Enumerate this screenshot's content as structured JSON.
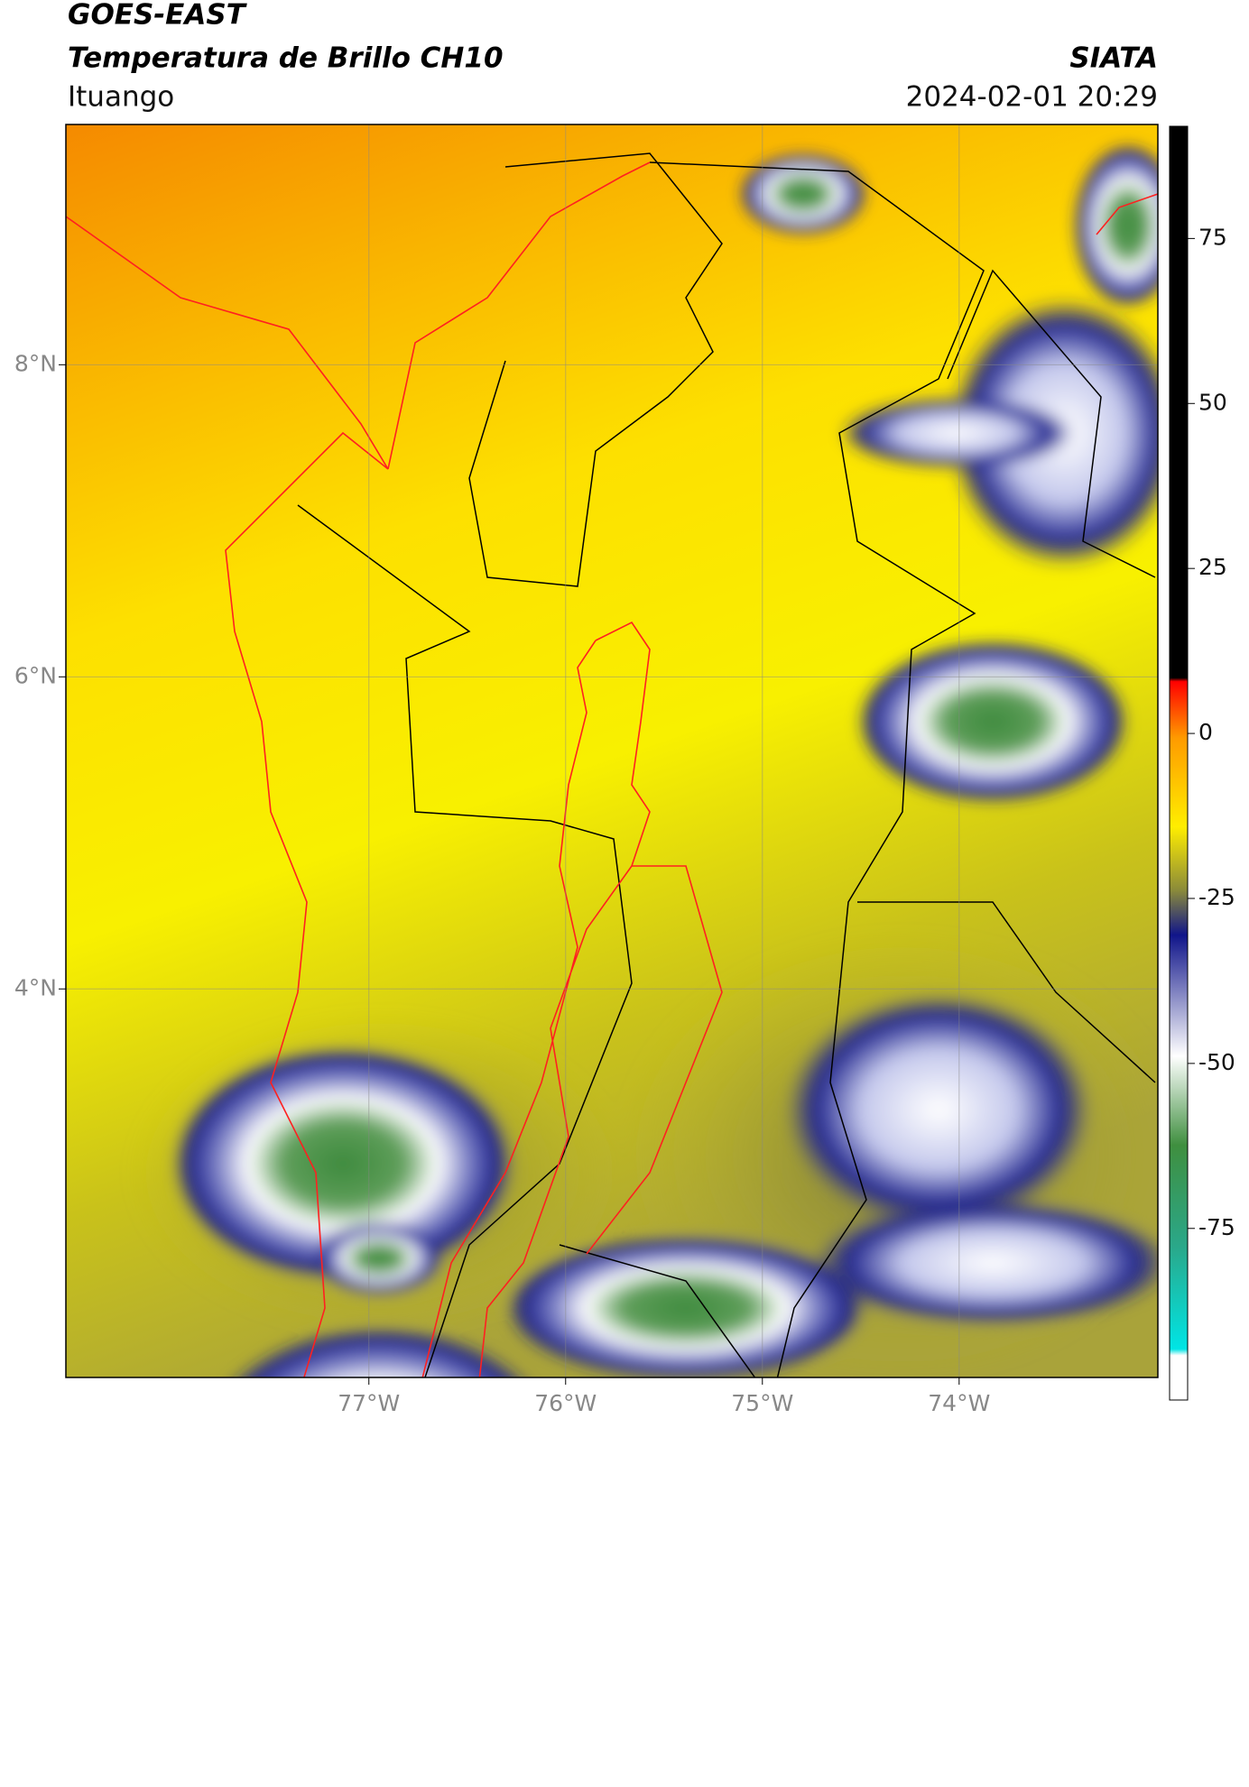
{
  "chart_data": {
    "type": "map",
    "title": "GOES-EAST",
    "subtitle": "Temperatura de Brillo CH10",
    "source": "SIATA",
    "region": "Ituango",
    "timestamp": "2024-02-01 20:29",
    "xlim": [
      -78.54,
      -72.99
    ],
    "ylim": [
      1.51,
      9.54
    ],
    "xticks": [
      {
        "value": -77,
        "label": "77°W"
      },
      {
        "value": -76,
        "label": "76°W"
      },
      {
        "value": -75,
        "label": "75°W"
      },
      {
        "value": -74,
        "label": "74°W"
      }
    ],
    "yticks": [
      {
        "value": 8,
        "label": "8°N"
      },
      {
        "value": 6,
        "label": "6°N"
      },
      {
        "value": 4,
        "label": "4°N"
      }
    ],
    "grid": true,
    "colorbar": {
      "lim": [
        -101,
        92
      ],
      "ticks": [
        75,
        50,
        25,
        0,
        -25,
        -50,
        -75
      ]
    }
  }
}
